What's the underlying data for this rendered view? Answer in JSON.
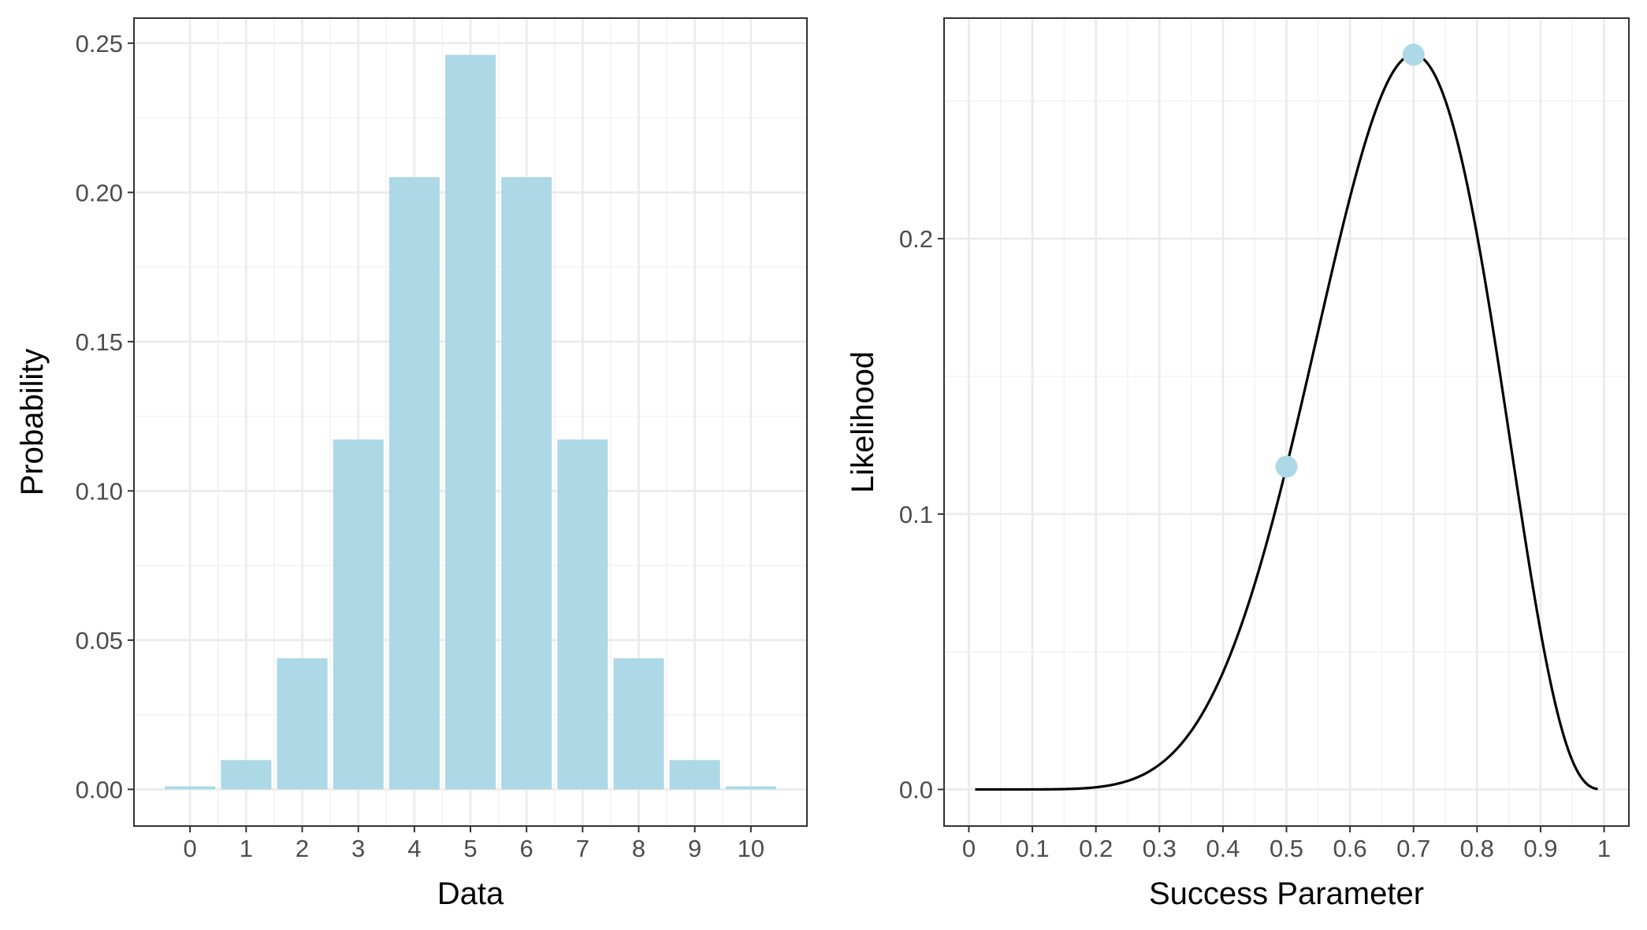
{
  "chart_data": [
    {
      "type": "bar",
      "xlabel": "Data",
      "ylabel": "Probability",
      "categories": [
        "0",
        "1",
        "2",
        "3",
        "4",
        "5",
        "6",
        "7",
        "8",
        "9",
        "10"
      ],
      "values": [
        0.001,
        0.0098,
        0.0439,
        0.1172,
        0.2051,
        0.2461,
        0.2051,
        0.1172,
        0.0439,
        0.0098,
        0.001
      ],
      "xlim": [
        -1,
        11
      ],
      "ylim": [
        -0.0123,
        0.2584
      ],
      "x_ticks": [
        0,
        1,
        2,
        3,
        4,
        5,
        6,
        7,
        8,
        9,
        10
      ],
      "x_tick_labels": [
        "0",
        "1",
        "2",
        "3",
        "4",
        "5",
        "6",
        "7",
        "8",
        "9",
        "10"
      ],
      "y_ticks": [
        0,
        0.05,
        0.1,
        0.15,
        0.2,
        0.25
      ],
      "y_tick_labels": [
        "0.00",
        "0.05",
        "0.10",
        "0.15",
        "0.20",
        "0.25"
      ],
      "bar_color": "#ADD8E6",
      "grid": true
    },
    {
      "type": "line",
      "xlabel": "Success Parameter",
      "ylabel": "Likelihood",
      "curve": {
        "function": "binomial_likelihood",
        "n": 10,
        "k": 7,
        "x_range": [
          0.01,
          0.99
        ],
        "color": "#000000"
      },
      "points": [
        {
          "x": 0.5,
          "y": 0.1172
        },
        {
          "x": 0.7,
          "y": 0.2668
        }
      ],
      "point_color": "#ADD8E6",
      "xlim": [
        -0.039,
        1.039
      ],
      "ylim": [
        -0.0133,
        0.2801
      ],
      "x_ticks": [
        0,
        0.1,
        0.2,
        0.3,
        0.4,
        0.5,
        0.6,
        0.7,
        0.8,
        0.9,
        1
      ],
      "x_tick_labels": [
        "0",
        "0.1",
        "0.2",
        "0.3",
        "0.4",
        "0.5",
        "0.6",
        "0.7",
        "0.8",
        "0.9",
        "1"
      ],
      "y_ticks": [
        0,
        0.1,
        0.2
      ],
      "y_tick_labels": [
        "0.0",
        "0.1",
        "0.2"
      ],
      "grid": true
    }
  ]
}
